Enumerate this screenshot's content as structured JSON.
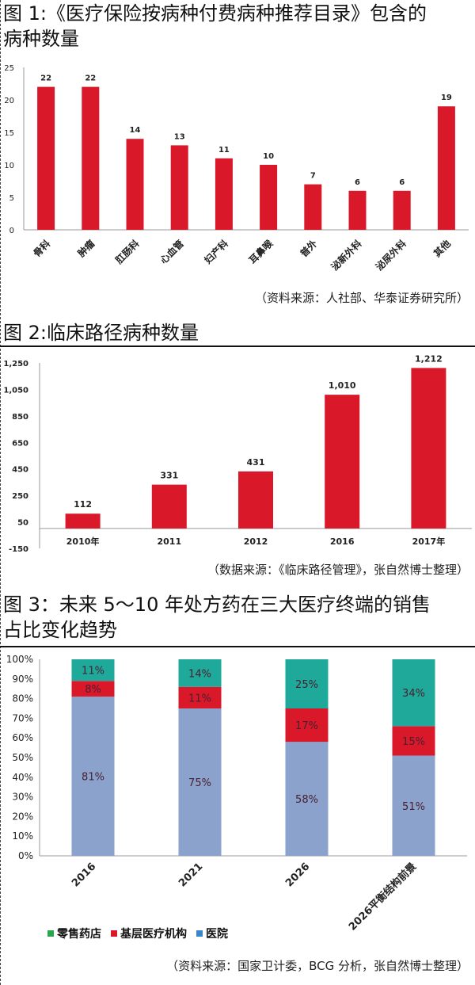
{
  "figure1": {
    "title_line1": "图 1:《医疗保险按病种付费病种推荐目录》包含的",
    "title_line2": "病种数量",
    "source": "（资料来源：人社部、华泰证券研究所）"
  },
  "figure2": {
    "title": "图 2:临床路径病种数量",
    "source": "（数据来源：《临床路径管理》，张自然博士整理）"
  },
  "figure3": {
    "title_line1": "图 3：未来 5～10 年处方药在三大医疗终端的销售",
    "title_line2": "占比变化趋势",
    "source": "（资料来源：国家卫计委，BCG 分析，张自然博士整理）"
  },
  "colors": {
    "red": "#d9182a",
    "blue": "#8aa2cc",
    "teal": "#1fa99a",
    "legend_green": "#2aa650",
    "legend_red": "#d9182a",
    "legend_blue": "#3a86c8"
  },
  "chart_data": [
    {
      "type": "bar",
      "categories": [
        "骨科",
        "肿瘤",
        "肛肠科",
        "心血管",
        "妇产科",
        "耳鼻喉",
        "普外",
        "泌新外科",
        "泌尿外科",
        "其他"
      ],
      "values": [
        22,
        22,
        14,
        13,
        11,
        10,
        7,
        6,
        6,
        19
      ],
      "yticks": [
        "0",
        "5",
        "10",
        "15",
        "20",
        "25"
      ],
      "ylim": [
        0,
        25
      ],
      "data_labels": [
        "22",
        "22",
        "14",
        "13",
        "11",
        "10",
        "7",
        "6",
        "6",
        "19"
      ],
      "grid": false
    },
    {
      "type": "bar",
      "categories": [
        "2010年",
        "2011",
        "2012",
        "2016",
        "2017年"
      ],
      "values": [
        112,
        331,
        431,
        1010,
        1212
      ],
      "data_labels": [
        "112",
        "331",
        "431",
        "1,010",
        "1,212"
      ],
      "yticks": [
        "-150",
        "50",
        "250",
        "450",
        "650",
        "850",
        "1,050",
        "1,250"
      ],
      "ylim": [
        -150,
        1250
      ],
      "grid": false
    },
    {
      "type": "bar",
      "stacked": true,
      "categories": [
        "2016",
        "2021",
        "2026",
        "2026平衡结构前景"
      ],
      "series": [
        {
          "name": "医院",
          "values": [
            81,
            75,
            58,
            51
          ],
          "labels": [
            "81%",
            "75%",
            "58%",
            "51%"
          ]
        },
        {
          "name": "基层医疗机构",
          "values": [
            8,
            11,
            17,
            15
          ],
          "labels": [
            "8%",
            "11%",
            "17%",
            "15%"
          ]
        },
        {
          "name": "零售药店",
          "values": [
            11,
            14,
            25,
            34
          ],
          "labels": [
            "11%",
            "14%",
            "25%",
            "34%"
          ]
        }
      ],
      "legend_order": [
        "零售药店",
        "基层医疗机构",
        "医院"
      ],
      "yticks": [
        "0%",
        "10%",
        "20%",
        "30%",
        "40%",
        "50%",
        "60%",
        "70%",
        "80%",
        "90%",
        "100%"
      ],
      "ylim": [
        0,
        100
      ],
      "legend_position": "bottom",
      "grid": false
    }
  ]
}
